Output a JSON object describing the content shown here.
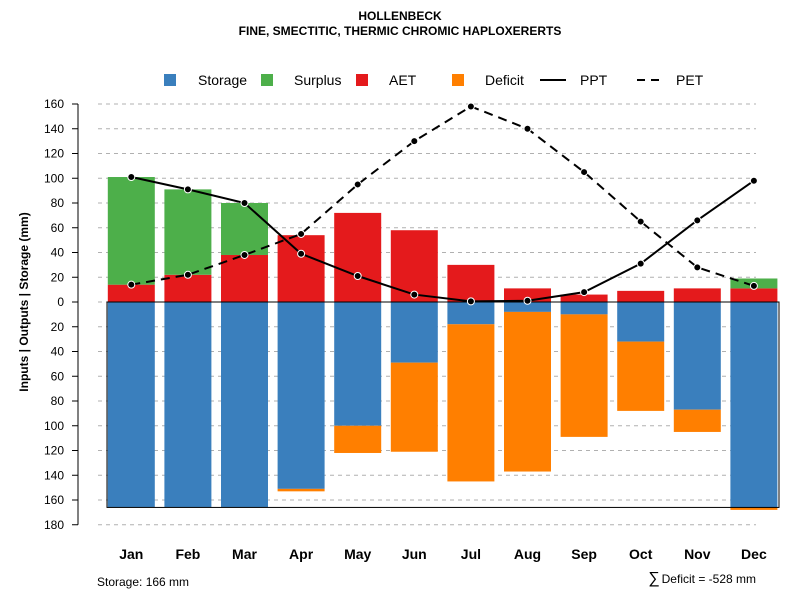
{
  "title": "HOLLENBECK",
  "subtitle": "FINE, SMECTITIC, THERMIC CHROMIC HAPLOXERERTS",
  "footer": {
    "storage_label": "Storage: 166 mm",
    "deficit_symbol": "∑",
    "deficit_label": "Deficit = -528 mm"
  },
  "colors": {
    "storage": "#3a7fbd",
    "surplus": "#4daf4a",
    "aet": "#e41a1c",
    "deficit": "#ff7f00"
  },
  "chart_data": {
    "type": "bar",
    "title": "HOLLENBECK",
    "subtitle": "FINE, SMECTITIC, THERMIC CHROMIC HAPLOXERERTS",
    "ylabel": "Inputs | Outputs | Storage    (mm)",
    "xlabel": "",
    "ylim": [
      -180,
      160
    ],
    "yticks": [
      160,
      140,
      120,
      100,
      80,
      60,
      40,
      20,
      0,
      -20,
      -40,
      -60,
      -80,
      -100,
      -120,
      -140,
      -160,
      -180
    ],
    "ytick_labels": [
      "160",
      "140",
      "120",
      "100",
      "80",
      "60",
      "40",
      "20",
      "0",
      "20",
      "40",
      "60",
      "80",
      "100",
      "120",
      "140",
      "160",
      "180"
    ],
    "grid": true,
    "legend_position": "top",
    "legend": [
      {
        "key": "storage",
        "label": "Storage",
        "kind": "box"
      },
      {
        "key": "surplus",
        "label": "Surplus",
        "kind": "box"
      },
      {
        "key": "aet",
        "label": "AET",
        "kind": "box"
      },
      {
        "key": "deficit",
        "label": "Deficit",
        "kind": "box"
      },
      {
        "key": "ppt",
        "label": "PPT",
        "kind": "line"
      },
      {
        "key": "pet",
        "label": "PET",
        "kind": "dash"
      }
    ],
    "categories": [
      "Jan",
      "Feb",
      "Mar",
      "Apr",
      "May",
      "Jun",
      "Jul",
      "Aug",
      "Sep",
      "Oct",
      "Nov",
      "Dec"
    ],
    "storage_capacity": 166,
    "series": [
      {
        "name": "AET",
        "key": "aet",
        "values": [
          14,
          22,
          38,
          54,
          72,
          58,
          30,
          11,
          6,
          9,
          11,
          11
        ]
      },
      {
        "name": "Surplus",
        "key": "surplus",
        "values": [
          87,
          69,
          42,
          0,
          0,
          0,
          0,
          0,
          0,
          0,
          0,
          8
        ]
      },
      {
        "name": "Storage",
        "key": "storage",
        "values": [
          166,
          166,
          166,
          151,
          100,
          49,
          18,
          8,
          10,
          32,
          87,
          166
        ]
      },
      {
        "name": "Deficit",
        "key": "deficit",
        "values": [
          0,
          0,
          0,
          2,
          22,
          72,
          127,
          129,
          99,
          56,
          18,
          2
        ]
      },
      {
        "name": "PPT",
        "key": "ppt",
        "values": [
          101,
          91,
          80,
          39,
          21,
          6,
          0.5,
          1,
          8,
          31,
          66,
          98
        ]
      },
      {
        "name": "PET",
        "key": "pet",
        "values": [
          14,
          22,
          38,
          55,
          95,
          130,
          158,
          140,
          105,
          65,
          28,
          13
        ]
      }
    ]
  }
}
